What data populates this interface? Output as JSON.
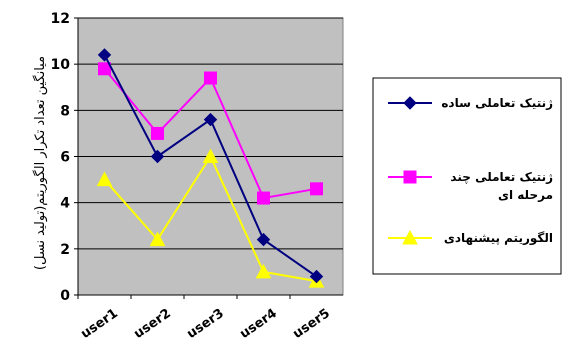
{
  "chart_data": {
    "type": "line",
    "categories": [
      "user1",
      "user2",
      "user3",
      "user4",
      "user5"
    ],
    "ylabel": "میانگین تعداد تکرار الگوریتم(تولید نسل)",
    "ylim": [
      0,
      12
    ],
    "yticks": [
      "0",
      "2",
      "4",
      "6",
      "8",
      "10",
      "12"
    ],
    "grid": true,
    "legend_position": "right",
    "plot_background": "#c0c0c0",
    "series": [
      {
        "name": "ژنتیک تعاملی ساده",
        "color": "#000080",
        "marker": "diamond",
        "values": [
          10.4,
          6,
          7.6,
          2.4,
          0.8
        ]
      },
      {
        "name": "ژنتیک تعاملی چند مرحله ای",
        "name_lines": [
          "ژنتیک تعاملی چند",
          "مرحله ای"
        ],
        "color": "#ff00ff",
        "marker": "square",
        "values": [
          9.8,
          7,
          9.4,
          4.2,
          4.6
        ]
      },
      {
        "name": "الگوریتم پیشنهادی",
        "color": "#ffff00",
        "marker": "triangle",
        "values": [
          5,
          2.4,
          6,
          1,
          0.6
        ]
      }
    ]
  }
}
